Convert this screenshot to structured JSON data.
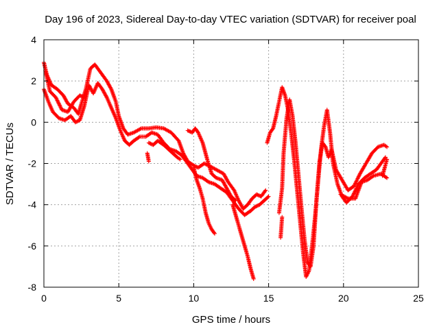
{
  "chart_data": {
    "type": "scatter",
    "title": "Day 196 of 2023, Sidereal Day-to-day VTEC variation (SDTVAR) for receiver poal",
    "xlabel": "GPS time / hours",
    "ylabel": "SDTVAR / TECUs",
    "xlim": [
      0,
      25
    ],
    "ylim": [
      -8,
      4
    ],
    "xticks": [
      0,
      5,
      10,
      15,
      20,
      25
    ],
    "yticks": [
      -8,
      -6,
      -4,
      -2,
      0,
      2,
      4
    ],
    "xtick_labels": [
      "0",
      "5",
      "10",
      "15",
      "20",
      "25"
    ],
    "ytick_labels": [
      "-8",
      "-6",
      "-4",
      "-2",
      "0",
      "2",
      "4"
    ],
    "grid": true,
    "marker": "+",
    "color": "#ff0000",
    "series": [
      {
        "name": "SDTVAR",
        "tracks": [
          [
            [
              0.0,
              2.9
            ],
            [
              0.2,
              2.3
            ],
            [
              0.5,
              1.8
            ],
            [
              0.9,
              1.6
            ],
            [
              1.3,
              1.3
            ],
            [
              1.6,
              0.9
            ],
            [
              2.0,
              0.7
            ],
            [
              2.3,
              0.4
            ],
            [
              2.5,
              0.9
            ],
            [
              2.8,
              1.6
            ],
            [
              3.1,
              2.6
            ],
            [
              3.4,
              2.8
            ],
            [
              3.8,
              2.4
            ],
            [
              4.2,
              2.0
            ],
            [
              4.5,
              1.6
            ],
            [
              4.8,
              1.0
            ],
            [
              5.0,
              0.3
            ],
            [
              5.3,
              -0.3
            ],
            [
              5.6,
              -0.6
            ],
            [
              6.0,
              -0.5
            ],
            [
              6.5,
              -0.3
            ],
            [
              7.0,
              -0.3
            ],
            [
              7.5,
              -0.25
            ],
            [
              8.0,
              -0.3
            ],
            [
              8.5,
              -0.5
            ],
            [
              9.0,
              -0.9
            ],
            [
              9.3,
              -1.5
            ],
            [
              9.6,
              -1.9
            ],
            [
              10.0,
              -2.1
            ],
            [
              10.3,
              -2.2
            ],
            [
              10.7,
              -2.0
            ],
            [
              11.0,
              -2.1
            ],
            [
              11.5,
              -2.3
            ],
            [
              12.0,
              -2.5
            ],
            [
              12.3,
              -2.9
            ],
            [
              12.7,
              -3.3
            ],
            [
              13.0,
              -3.8
            ],
            [
              13.3,
              -4.2
            ],
            [
              13.6,
              -4.0
            ],
            [
              13.9,
              -3.7
            ],
            [
              14.2,
              -3.5
            ],
            [
              14.5,
              -3.6
            ],
            [
              14.8,
              -3.3
            ]
          ],
          [
            [
              0.0,
              1.6
            ],
            [
              0.3,
              1.0
            ],
            [
              0.6,
              0.5
            ],
            [
              1.0,
              0.2
            ],
            [
              1.4,
              0.1
            ],
            [
              1.8,
              0.3
            ],
            [
              2.1,
              0.0
            ],
            [
              2.4,
              0.1
            ],
            [
              2.7,
              0.8
            ],
            [
              3.0,
              1.8
            ],
            [
              3.3,
              1.4
            ],
            [
              3.6,
              1.9
            ],
            [
              3.9,
              1.6
            ],
            [
              4.2,
              1.2
            ],
            [
              4.5,
              0.7
            ],
            [
              4.8,
              0.2
            ],
            [
              5.1,
              -0.4
            ],
            [
              5.4,
              -0.9
            ],
            [
              5.7,
              -1.1
            ],
            [
              6.0,
              -0.9
            ],
            [
              6.4,
              -0.7
            ],
            [
              6.8,
              -0.7
            ],
            [
              7.2,
              -0.5
            ],
            [
              7.6,
              -0.6
            ],
            [
              8.0,
              -1.0
            ],
            [
              8.4,
              -1.3
            ],
            [
              8.8,
              -1.4
            ],
            [
              9.2,
              -1.6
            ],
            [
              9.6,
              -2.0
            ],
            [
              9.9,
              -2.3
            ],
            [
              10.2,
              -2.6
            ],
            [
              10.6,
              -2.7
            ],
            [
              11.0,
              -2.9
            ],
            [
              11.4,
              -3.0
            ],
            [
              11.8,
              -3.2
            ],
            [
              12.2,
              -3.4
            ],
            [
              12.6,
              -3.8
            ],
            [
              13.0,
              -4.2
            ],
            [
              13.4,
              -4.5
            ],
            [
              13.8,
              -4.3
            ],
            [
              14.1,
              -4.1
            ],
            [
              14.4,
              -4.0
            ],
            [
              14.7,
              -3.8
            ],
            [
              15.0,
              -3.6
            ]
          ],
          [
            [
              0.1,
              2.5
            ],
            [
              0.4,
              1.5
            ],
            [
              0.8,
              1.2
            ],
            [
              1.2,
              0.6
            ],
            [
              1.6,
              0.5
            ],
            [
              2.0,
              1.0
            ],
            [
              2.4,
              1.3
            ],
            [
              2.7,
              1.2
            ]
          ],
          [
            [
              7.0,
              -1.0
            ],
            [
              7.3,
              -1.1
            ],
            [
              7.6,
              -0.9
            ],
            [
              8.0,
              -1.1
            ],
            [
              8.3,
              -1.3
            ],
            [
              8.6,
              -1.5
            ],
            [
              8.9,
              -1.7
            ],
            [
              9.1,
              -1.8
            ]
          ],
          [
            [
              6.9,
              -1.5
            ],
            [
              7.0,
              -1.9
            ]
          ],
          [
            [
              9.6,
              -0.4
            ],
            [
              9.9,
              -0.5
            ],
            [
              10.1,
              -0.3
            ],
            [
              10.3,
              -0.5
            ],
            [
              10.6,
              -1.0
            ],
            [
              10.9,
              -1.8
            ],
            [
              11.2,
              -2.5
            ],
            [
              11.5,
              -2.7
            ],
            [
              11.9,
              -2.8
            ],
            [
              12.2,
              -3.2
            ],
            [
              12.5,
              -3.6
            ],
            [
              12.8,
              -3.8
            ]
          ],
          [
            [
              10.0,
              -2.2
            ],
            [
              10.2,
              -2.8
            ],
            [
              10.4,
              -3.2
            ],
            [
              10.6,
              -3.7
            ],
            [
              10.8,
              -4.4
            ],
            [
              11.0,
              -4.9
            ],
            [
              11.2,
              -5.2
            ],
            [
              11.4,
              -5.4
            ]
          ],
          [
            [
              12.6,
              -4.0
            ],
            [
              12.8,
              -4.5
            ],
            [
              13.0,
              -5.0
            ],
            [
              13.2,
              -5.5
            ],
            [
              13.4,
              -6.0
            ],
            [
              13.6,
              -6.5
            ],
            [
              13.8,
              -7.1
            ],
            [
              14.0,
              -7.6
            ]
          ],
          [
            [
              14.9,
              -1.0
            ],
            [
              15.1,
              -0.5
            ],
            [
              15.3,
              -0.3
            ],
            [
              15.5,
              0.3
            ],
            [
              15.7,
              1.0
            ],
            [
              15.9,
              1.7
            ],
            [
              16.1,
              1.3
            ],
            [
              16.3,
              0.6
            ],
            [
              16.5,
              -0.5
            ],
            [
              16.7,
              -1.8
            ],
            [
              16.9,
              -3.3
            ],
            [
              17.1,
              -4.8
            ],
            [
              17.3,
              -6.3
            ],
            [
              17.5,
              -7.5
            ],
            [
              17.7,
              -7.2
            ],
            [
              17.9,
              -6.0
            ],
            [
              18.1,
              -4.6
            ],
            [
              18.3,
              -2.9
            ],
            [
              18.5,
              -1.3
            ],
            [
              18.7,
              -0.2
            ],
            [
              18.9,
              0.6
            ],
            [
              19.1,
              -0.5
            ],
            [
              19.3,
              -2.0
            ],
            [
              19.6,
              -3.0
            ],
            [
              19.9,
              -3.6
            ],
            [
              20.2,
              -3.9
            ],
            [
              20.6,
              -3.6
            ],
            [
              21.0,
              -3.0
            ],
            [
              21.4,
              -2.7
            ],
            [
              21.8,
              -2.5
            ],
            [
              22.2,
              -2.3
            ],
            [
              22.5,
              -2.0
            ],
            [
              22.8,
              -1.7
            ]
          ],
          [
            [
              15.7,
              -4.4
            ],
            [
              15.9,
              -3.2
            ],
            [
              16.0,
              -1.5
            ],
            [
              16.2,
              0.2
            ],
            [
              16.4,
              1.1
            ],
            [
              16.6,
              0.3
            ],
            [
              16.8,
              -1.0
            ],
            [
              17.0,
              -2.6
            ],
            [
              17.2,
              -4.2
            ],
            [
              17.4,
              -5.7
            ],
            [
              17.6,
              -6.8
            ],
            [
              17.8,
              -7.0
            ],
            [
              18.0,
              -6.0
            ],
            [
              18.2,
              -3.7
            ],
            [
              18.4,
              -1.9
            ],
            [
              18.6,
              -1.0
            ],
            [
              18.8,
              -1.2
            ],
            [
              19.0,
              -1.7
            ],
            [
              19.2,
              -1.3
            ],
            [
              19.5,
              -2.3
            ],
            [
              19.9,
              -2.8
            ],
            [
              20.3,
              -3.3
            ],
            [
              20.7,
              -3.1
            ],
            [
              21.1,
              -2.5
            ],
            [
              21.5,
              -2.0
            ],
            [
              21.9,
              -1.5
            ],
            [
              22.3,
              -1.2
            ],
            [
              22.7,
              -1.1
            ],
            [
              22.9,
              -1.2
            ]
          ],
          [
            [
              15.8,
              -5.6
            ],
            [
              15.9,
              -4.6
            ]
          ],
          [
            [
              19.8,
              -3.5
            ],
            [
              20.3,
              -3.7
            ],
            [
              20.8,
              -3.7
            ],
            [
              21.2,
              -2.9
            ],
            [
              21.6,
              -2.8
            ],
            [
              22.0,
              -2.6
            ],
            [
              22.5,
              -2.5
            ],
            [
              22.9,
              -2.7
            ]
          ],
          [
            [
              22.6,
              -2.6
            ],
            [
              22.9,
              -1.8
            ]
          ]
        ]
      }
    ]
  }
}
